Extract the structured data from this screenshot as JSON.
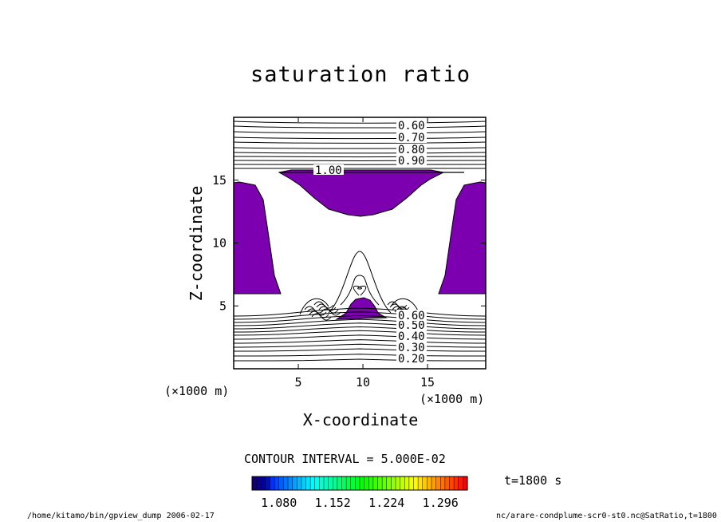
{
  "chart_data": {
    "type": "contour",
    "title": "saturation ratio",
    "xlabel": "X-coordinate",
    "ylabel": "Z-coordinate",
    "x_unit": "(×1000 m)",
    "z_unit": "(×1000 m)",
    "xlim": [
      0,
      19.5
    ],
    "ylim": [
      0,
      20
    ],
    "x_ticks": [
      5,
      10,
      15
    ],
    "y_ticks": [
      5,
      10,
      15
    ],
    "contour_interval_text": "CONTOUR INTERVAL = 5.000E-02",
    "contour_labels_upper": [
      "0.60",
      "0.70",
      "0.80",
      "0.90",
      "1.00"
    ],
    "contour_labels_lower": [
      "0.20",
      "0.30",
      "0.40",
      "0.50",
      "0.60"
    ],
    "fill_color": "#7c00b0",
    "colorbar_labels": [
      "1.080",
      "1.152",
      "1.224",
      "1.296"
    ],
    "colorbar_range": [
      1.044,
      1.332
    ],
    "time_label": "t=1800 s"
  },
  "footer": {
    "left": "/home/kitamo/bin/gpview_dump  2006-02-17",
    "right": "nc/arare-condplume-scr0-st0.nc@SatRatio,t=1800"
  }
}
